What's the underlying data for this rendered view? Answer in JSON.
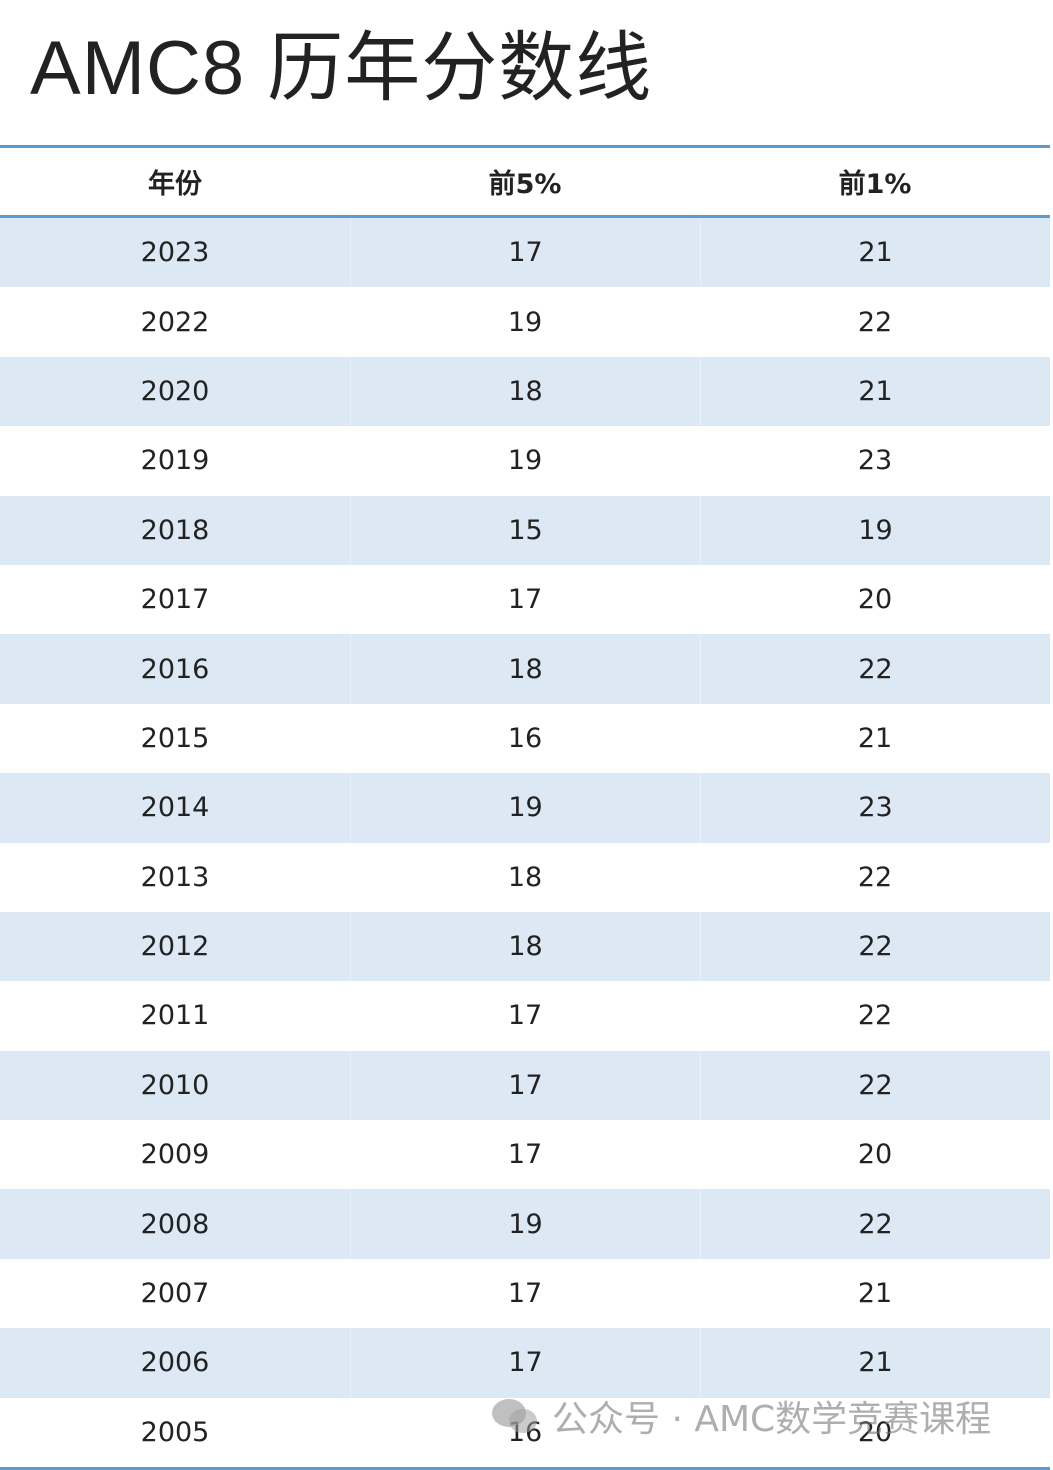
{
  "header": {
    "title": "AMC8 历年分数线"
  },
  "table": {
    "columns": [
      "年份",
      "前5%",
      "前1%"
    ],
    "rows": [
      [
        "2023",
        "17",
        "21"
      ],
      [
        "2022",
        "19",
        "22"
      ],
      [
        "2020",
        "18",
        "21"
      ],
      [
        "2019",
        "19",
        "23"
      ],
      [
        "2018",
        "15",
        "19"
      ],
      [
        "2017",
        "17",
        "20"
      ],
      [
        "2016",
        "18",
        "22"
      ],
      [
        "2015",
        "16",
        "21"
      ],
      [
        "2014",
        "19",
        "23"
      ],
      [
        "2013",
        "18",
        "22"
      ],
      [
        "2012",
        "18",
        "22"
      ],
      [
        "2011",
        "17",
        "22"
      ],
      [
        "2010",
        "17",
        "22"
      ],
      [
        "2009",
        "17",
        "20"
      ],
      [
        "2008",
        "19",
        "22"
      ],
      [
        "2007",
        "17",
        "21"
      ],
      [
        "2006",
        "17",
        "21"
      ],
      [
        "2005",
        "16",
        "20"
      ]
    ]
  },
  "watermark": "公众号 · AMC数学竞赛课程"
}
